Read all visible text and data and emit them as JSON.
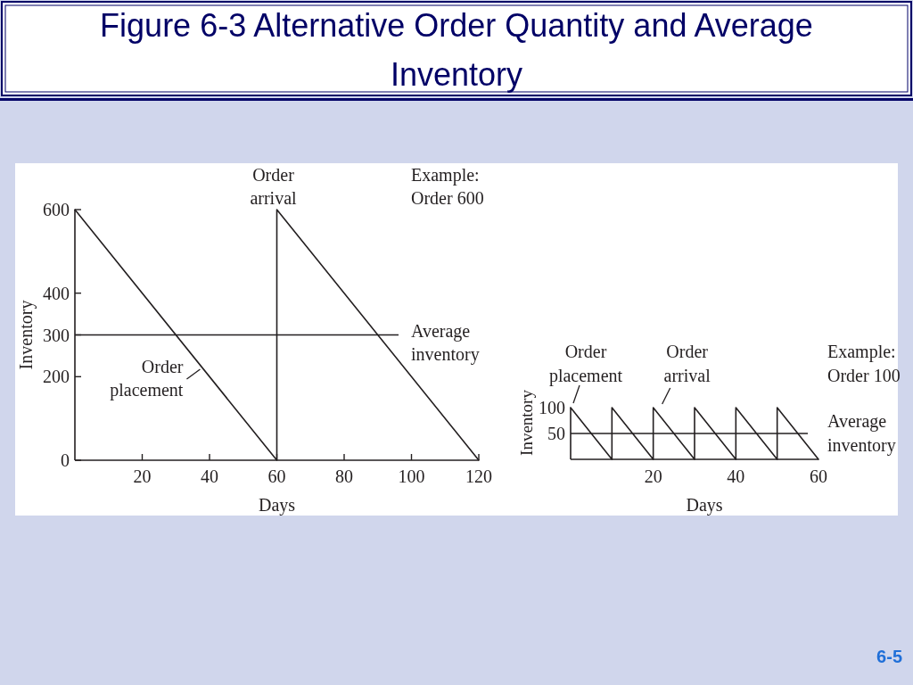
{
  "chart_data": [
    {
      "type": "line",
      "title": "Figure 6-3 Alternative Order Quantity and Average Inventory",
      "xlabel": "Days",
      "ylabel": "Inventory",
      "x": [
        0,
        60,
        60,
        120
      ],
      "values": [
        600,
        0,
        600,
        0
      ],
      "color": "#231f20",
      "xlim": [
        0,
        120
      ],
      "ylim": [
        0,
        600
      ],
      "xticks": [
        20,
        40,
        60,
        80,
        100,
        120
      ],
      "yticks": [
        0,
        200,
        300,
        400,
        600
      ],
      "ref_lines": [
        {
          "axis": "y",
          "value": 300,
          "label": "Average inventory",
          "color": "#231f20"
        }
      ],
      "annotations": [
        "Example: Order 600",
        {
          "text": "Order placement",
          "x": 38,
          "y": 220
        },
        {
          "text": "Order arrival",
          "x": 60,
          "y": 600
        }
      ]
    },
    {
      "type": "line",
      "xlabel": "Days",
      "ylabel": "Inventory",
      "x": [
        0,
        10,
        10,
        20,
        20,
        30,
        30,
        40,
        40,
        50,
        50,
        60
      ],
      "values": [
        100,
        0,
        100,
        0,
        100,
        0,
        100,
        0,
        100,
        0,
        100,
        0
      ],
      "color": "#231f20",
      "xlim": [
        0,
        60
      ],
      "ylim": [
        0,
        100
      ],
      "xticks": [
        20,
        40,
        60
      ],
      "yticks": [
        50,
        100
      ],
      "ref_lines": [
        {
          "axis": "y",
          "value": 50,
          "label": "Average inventory",
          "color": "#231f20"
        }
      ],
      "annotations": [
        "Example: Order 100",
        "6-5",
        {
          "text": "Order placement",
          "x": 0,
          "y": 100
        },
        {
          "text": "Order arrival",
          "x": 20,
          "y": 100
        }
      ]
    }
  ]
}
